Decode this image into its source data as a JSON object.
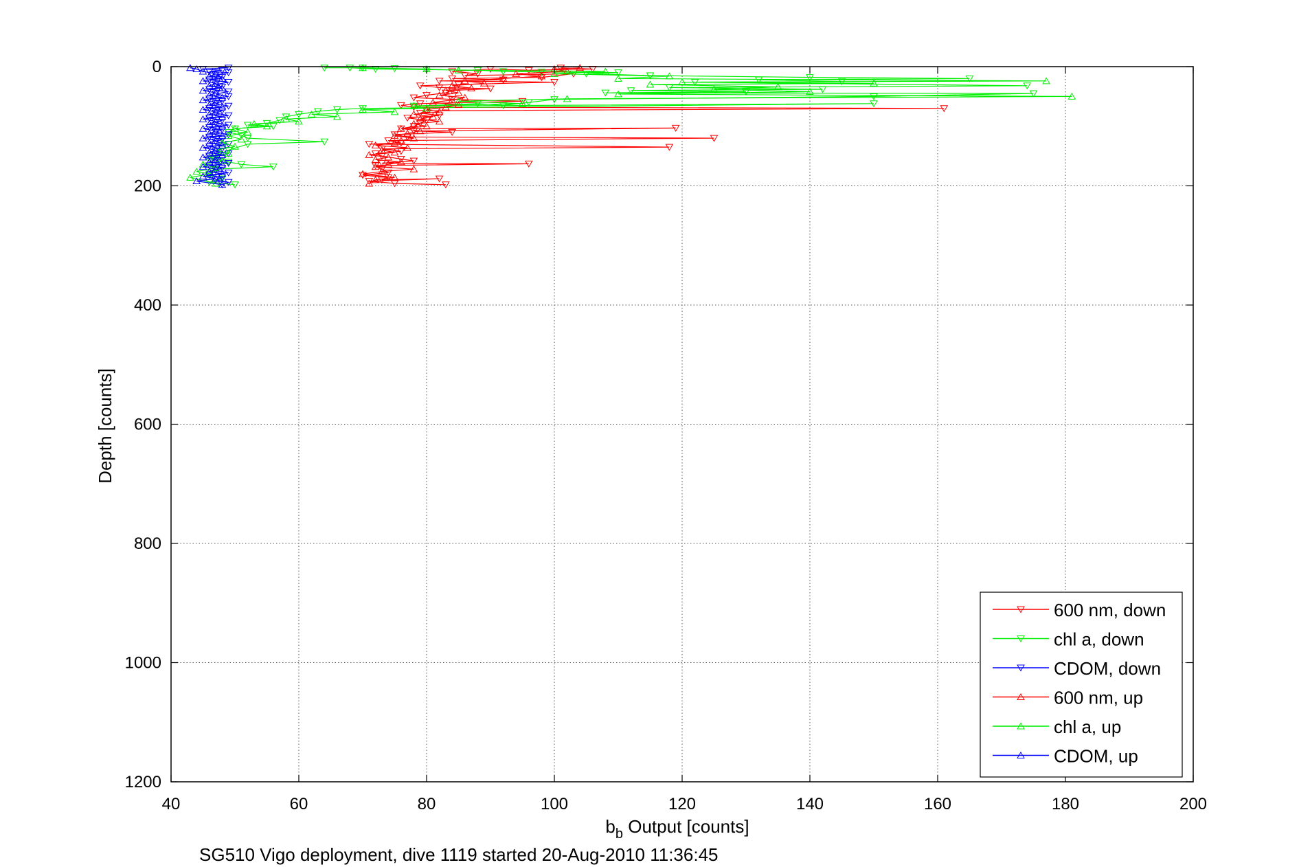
{
  "chart_data": {
    "type": "line",
    "xlabel_main": "b",
    "xlabel_sub": "b",
    "xlabel_rest": " Output [counts]",
    "ylabel": "Depth [counts]",
    "caption": "SG510 Vigo deployment, dive 1119 started 20-Aug-2010 11:36:45",
    "xlim": [
      40,
      200
    ],
    "ylim": [
      0,
      1200
    ],
    "y_reversed": true,
    "grid": true,
    "xticks": [
      "40",
      "60",
      "80",
      "100",
      "120",
      "140",
      "160",
      "180",
      "200"
    ],
    "yticks": [
      "0",
      "200",
      "400",
      "600",
      "800",
      "1000",
      "1200"
    ],
    "legend_position": "bottom-right",
    "series": [
      {
        "name": "600 nm, down",
        "color": "#ff0000",
        "marker": "triangle-down",
        "points": [
          [
            101,
            2
          ],
          [
            106,
            4
          ],
          [
            96,
            6
          ],
          [
            90,
            4
          ],
          [
            84,
            8
          ],
          [
            88,
            12
          ],
          [
            86,
            15
          ],
          [
            103,
            12
          ],
          [
            98,
            18
          ],
          [
            84,
            20
          ],
          [
            92,
            22
          ],
          [
            82,
            24
          ],
          [
            100,
            26
          ],
          [
            85,
            30
          ],
          [
            79,
            32
          ],
          [
            82,
            35
          ],
          [
            90,
            37
          ],
          [
            84,
            40
          ],
          [
            83,
            44
          ],
          [
            80,
            48
          ],
          [
            78,
            52
          ],
          [
            84,
            55
          ],
          [
            95,
            58
          ],
          [
            79,
            62
          ],
          [
            76,
            65
          ],
          [
            78,
            68
          ],
          [
            161,
            70
          ],
          [
            80,
            74
          ],
          [
            79,
            78
          ],
          [
            82,
            82
          ],
          [
            77,
            86
          ],
          [
            80,
            90
          ],
          [
            79,
            95
          ],
          [
            78,
            100
          ],
          [
            76,
            104
          ],
          [
            119,
            103
          ],
          [
            78,
            108
          ],
          [
            84,
            110
          ],
          [
            75,
            114
          ],
          [
            77,
            118
          ],
          [
            125,
            120
          ],
          [
            74,
            124
          ],
          [
            76,
            128
          ],
          [
            71,
            130
          ],
          [
            118,
            135
          ],
          [
            73,
            138
          ],
          [
            76,
            142
          ],
          [
            72,
            146
          ],
          [
            73,
            150
          ],
          [
            76,
            155
          ],
          [
            78,
            158
          ],
          [
            73,
            162
          ],
          [
            96,
            163
          ],
          [
            72,
            166
          ],
          [
            73,
            172
          ],
          [
            74,
            178
          ],
          [
            70,
            182
          ],
          [
            74,
            186
          ],
          [
            73,
            190
          ],
          [
            82,
            188
          ],
          [
            71,
            192
          ],
          [
            75,
            196
          ],
          [
            83,
            198
          ]
        ]
      },
      {
        "name": "chl a, down",
        "color": "#00ee00",
        "marker": "triangle-down",
        "points": [
          [
            64,
            2
          ],
          [
            70,
            2
          ],
          [
            75,
            3
          ],
          [
            68,
            2
          ],
          [
            72,
            4
          ],
          [
            80,
            5
          ],
          [
            88,
            6
          ],
          [
            92,
            8
          ],
          [
            98,
            9
          ],
          [
            110,
            10
          ],
          [
            105,
            12
          ],
          [
            115,
            15
          ],
          [
            140,
            18
          ],
          [
            165,
            20
          ],
          [
            132,
            22
          ],
          [
            145,
            25
          ],
          [
            122,
            26
          ],
          [
            174,
            32
          ],
          [
            118,
            35
          ],
          [
            142,
            38
          ],
          [
            112,
            40
          ],
          [
            130,
            42
          ],
          [
            108,
            44
          ],
          [
            175,
            45
          ],
          [
            150,
            50
          ],
          [
            100,
            55
          ],
          [
            96,
            60
          ],
          [
            92,
            65
          ],
          [
            88,
            62
          ],
          [
            78,
            66
          ],
          [
            150,
            62
          ],
          [
            70,
            70
          ],
          [
            66,
            72
          ],
          [
            63,
            75
          ],
          [
            60,
            80
          ],
          [
            58,
            84
          ],
          [
            57,
            90
          ],
          [
            55,
            95
          ],
          [
            52,
            98
          ],
          [
            56,
            100
          ],
          [
            50,
            104
          ],
          [
            49,
            110
          ],
          [
            51,
            115
          ],
          [
            52,
            120
          ],
          [
            64,
            126
          ],
          [
            52,
            130
          ],
          [
            49,
            140
          ],
          [
            47,
            150
          ],
          [
            49,
            160
          ],
          [
            51,
            164
          ],
          [
            56,
            168
          ],
          [
            47,
            172
          ],
          [
            46,
            180
          ],
          [
            48,
            188
          ],
          [
            46,
            194
          ],
          [
            50,
            198
          ]
        ]
      },
      {
        "name": "CDOM, down",
        "color": "#0000ff",
        "marker": "triangle-down",
        "points": [
          [
            49,
            2
          ],
          [
            45,
            4
          ],
          [
            48,
            6
          ],
          [
            46,
            8
          ],
          [
            49,
            10
          ],
          [
            47,
            14
          ],
          [
            48,
            18
          ],
          [
            46,
            22
          ],
          [
            49,
            26
          ],
          [
            47,
            30
          ],
          [
            48,
            34
          ],
          [
            46,
            38
          ],
          [
            49,
            42
          ],
          [
            47,
            46
          ],
          [
            49,
            50
          ],
          [
            46,
            54
          ],
          [
            48,
            58
          ],
          [
            47,
            62
          ],
          [
            49,
            66
          ],
          [
            46,
            70
          ],
          [
            48,
            74
          ],
          [
            47,
            78
          ],
          [
            49,
            82
          ],
          [
            46,
            86
          ],
          [
            48,
            90
          ],
          [
            47,
            94
          ],
          [
            49,
            98
          ],
          [
            46,
            102
          ],
          [
            48,
            106
          ],
          [
            47,
            110
          ],
          [
            49,
            114
          ],
          [
            46,
            118
          ],
          [
            48,
            122
          ],
          [
            47,
            126
          ],
          [
            49,
            130
          ],
          [
            46,
            134
          ],
          [
            48,
            138
          ],
          [
            47,
            142
          ],
          [
            49,
            146
          ],
          [
            46,
            150
          ],
          [
            48,
            154
          ],
          [
            47,
            158
          ],
          [
            49,
            162
          ],
          [
            46,
            166
          ],
          [
            48,
            170
          ],
          [
            47,
            174
          ],
          [
            49,
            178
          ],
          [
            46,
            182
          ],
          [
            48,
            186
          ],
          [
            47,
            190
          ],
          [
            49,
            194
          ],
          [
            48,
            198
          ]
        ]
      },
      {
        "name": "600 nm, up",
        "color": "#ff0000",
        "marker": "triangle-up",
        "points": [
          [
            71,
            196
          ],
          [
            72,
            190
          ],
          [
            75,
            186
          ],
          [
            70,
            180
          ],
          [
            73,
            176
          ],
          [
            78,
            172
          ],
          [
            72,
            168
          ],
          [
            74,
            164
          ],
          [
            76,
            160
          ],
          [
            72,
            156
          ],
          [
            74,
            152
          ],
          [
            71,
            148
          ],
          [
            75,
            144
          ],
          [
            73,
            140
          ],
          [
            77,
            136
          ],
          [
            72,
            132
          ],
          [
            75,
            128
          ],
          [
            76,
            124
          ],
          [
            78,
            120
          ],
          [
            75,
            116
          ],
          [
            77,
            112
          ],
          [
            79,
            108
          ],
          [
            76,
            104
          ],
          [
            80,
            100
          ],
          [
            78,
            96
          ],
          [
            82,
            92
          ],
          [
            79,
            88
          ],
          [
            81,
            84
          ],
          [
            78,
            80
          ],
          [
            82,
            76
          ],
          [
            80,
            72
          ],
          [
            83,
            68
          ],
          [
            85,
            64
          ],
          [
            81,
            60
          ],
          [
            84,
            56
          ],
          [
            86,
            52
          ],
          [
            82,
            48
          ],
          [
            85,
            44
          ],
          [
            83,
            40
          ],
          [
            87,
            36
          ],
          [
            84,
            32
          ],
          [
            89,
            28
          ],
          [
            86,
            24
          ],
          [
            92,
            20
          ],
          [
            98,
            16
          ],
          [
            94,
            12
          ],
          [
            102,
            8
          ],
          [
            100,
            4
          ],
          [
            104,
            2
          ]
        ]
      },
      {
        "name": "chl a, up",
        "color": "#00ee00",
        "marker": "triangle-up",
        "points": [
          [
            47,
            196
          ],
          [
            43,
            186
          ],
          [
            46,
            180
          ],
          [
            44,
            176
          ],
          [
            47,
            170
          ],
          [
            45,
            164
          ],
          [
            48,
            158
          ],
          [
            46,
            152
          ],
          [
            49,
            146
          ],
          [
            47,
            140
          ],
          [
            50,
            134
          ],
          [
            48,
            128
          ],
          [
            51,
            122
          ],
          [
            49,
            116
          ],
          [
            52,
            110
          ],
          [
            50,
            104
          ],
          [
            55,
            100
          ],
          [
            53,
            96
          ],
          [
            60,
            92
          ],
          [
            58,
            88
          ],
          [
            66,
            84
          ],
          [
            62,
            80
          ],
          [
            75,
            76
          ],
          [
            70,
            72
          ],
          [
            80,
            70
          ],
          [
            78,
            66
          ],
          [
            95,
            62
          ],
          [
            85,
            58
          ],
          [
            102,
            54
          ],
          [
            181,
            50
          ],
          [
            110,
            46
          ],
          [
            140,
            42
          ],
          [
            125,
            38
          ],
          [
            135,
            34
          ],
          [
            115,
            30
          ],
          [
            150,
            28
          ],
          [
            120,
            26
          ],
          [
            177,
            24
          ],
          [
            110,
            20
          ],
          [
            118,
            16
          ],
          [
            100,
            12
          ],
          [
            108,
            8
          ],
          [
            85,
            6
          ],
          [
            80,
            4
          ],
          [
            70,
            2
          ]
        ]
      },
      {
        "name": "CDOM, up",
        "color": "#0000ff",
        "marker": "triangle-up",
        "points": [
          [
            48,
            198
          ],
          [
            44,
            192
          ],
          [
            47,
            188
          ],
          [
            45,
            184
          ],
          [
            48,
            180
          ],
          [
            46,
            176
          ],
          [
            47,
            172
          ],
          [
            45,
            168
          ],
          [
            48,
            164
          ],
          [
            46,
            160
          ],
          [
            47,
            156
          ],
          [
            45,
            152
          ],
          [
            48,
            148
          ],
          [
            46,
            144
          ],
          [
            47,
            140
          ],
          [
            45,
            136
          ],
          [
            48,
            132
          ],
          [
            46,
            128
          ],
          [
            47,
            124
          ],
          [
            45,
            120
          ],
          [
            48,
            116
          ],
          [
            46,
            112
          ],
          [
            47,
            108
          ],
          [
            45,
            104
          ],
          [
            48,
            100
          ],
          [
            46,
            96
          ],
          [
            47,
            92
          ],
          [
            45,
            88
          ],
          [
            48,
            84
          ],
          [
            46,
            80
          ],
          [
            47,
            76
          ],
          [
            45,
            72
          ],
          [
            48,
            68
          ],
          [
            46,
            64
          ],
          [
            47,
            60
          ],
          [
            45,
            56
          ],
          [
            48,
            52
          ],
          [
            46,
            48
          ],
          [
            47,
            44
          ],
          [
            45,
            40
          ],
          [
            48,
            36
          ],
          [
            46,
            32
          ],
          [
            47,
            28
          ],
          [
            45,
            24
          ],
          [
            48,
            20
          ],
          [
            46,
            16
          ],
          [
            47,
            12
          ],
          [
            45,
            8
          ],
          [
            44,
            4
          ],
          [
            43,
            2
          ]
        ]
      }
    ]
  }
}
